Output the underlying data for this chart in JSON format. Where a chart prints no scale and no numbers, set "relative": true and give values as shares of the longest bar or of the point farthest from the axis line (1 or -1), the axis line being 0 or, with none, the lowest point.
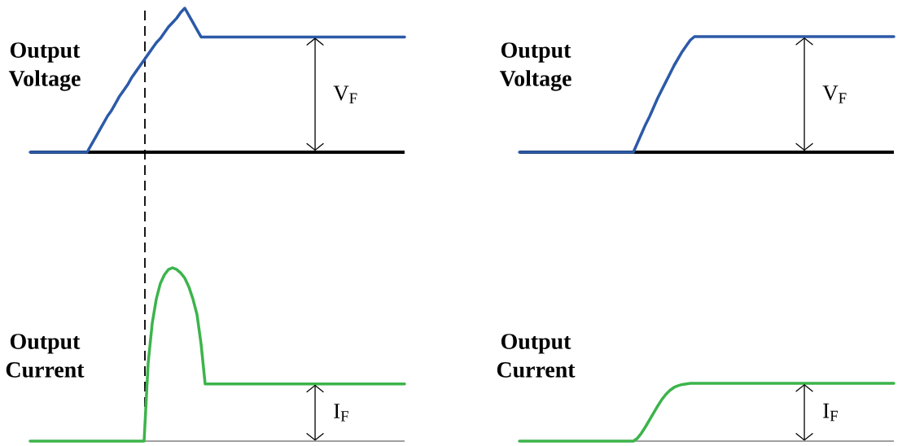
{
  "chart_data": [
    {
      "type": "line",
      "relative": true,
      "ylabel": "Output Voltage",
      "annotations": [
        {
          "text": "V$_{F}$",
          "y": 0.8
        }
      ],
      "categories": [
        null,
        null,
        null,
        null,
        null,
        null,
        null,
        null,
        null,
        null,
        null,
        null,
        null,
        null,
        null,
        null,
        null,
        null,
        null,
        null,
        null,
        null,
        null,
        null,
        null,
        null,
        null,
        null,
        null,
        null,
        null,
        null,
        null,
        null,
        null,
        null,
        null,
        null,
        null,
        null,
        null,
        null,
        null,
        null,
        null,
        null,
        null,
        null,
        null,
        null,
        null,
        null,
        null,
        null,
        null,
        null,
        null,
        null,
        null,
        null,
        null,
        null,
        null,
        null,
        null,
        null,
        null,
        null,
        null,
        null,
        null,
        null,
        null,
        null,
        null,
        null,
        null,
        null,
        null,
        null,
        null,
        null,
        null,
        null,
        null,
        null,
        null,
        null,
        null,
        null,
        null,
        null,
        null
      ],
      "series": [
        {
          "color": "#2c5aa8",
          "values": [
            0,
            0,
            0,
            0,
            0,
            0,
            0,
            0,
            0,
            0,
            0,
            0,
            0,
            0,
            0,
            0.05,
            0.1,
            0.15,
            0.2,
            0.25,
            0.29,
            0.34,
            0.39,
            0.43,
            0.47,
            0.52,
            0.56,
            0.6,
            0.64,
            0.68,
            0.72,
            0.76,
            0.79,
            0.83,
            0.87,
            0.9,
            0.93,
            0.97,
            1,
            0.95,
            0.9,
            0.85,
            0.8,
            0.8,
            0.8,
            0.8,
            0.8,
            0.8,
            0.8,
            0.8,
            0.8,
            0.8,
            0.8,
            0.8,
            0.8,
            0.8,
            0.8,
            0.8,
            0.8,
            0.8,
            0.8,
            0.8,
            0.8,
            0.8,
            0.8,
            0.8,
            0.8,
            0.8,
            0.8,
            0.8,
            0.8,
            0.8,
            0.8,
            0.8,
            0.8,
            0.8,
            0.8,
            0.8,
            0.8,
            0.8,
            0.8,
            0.8,
            0.8,
            0.8,
            0.8,
            0.8,
            0.8,
            0.8,
            0.8,
            0.8,
            0.8,
            0.8,
            0.8
          ]
        }
      ]
    },
    {
      "type": "line",
      "relative": true,
      "ylabel": "Output Voltage",
      "annotations": [
        {
          "text": "V$_{F}$",
          "y": 1
        }
      ],
      "categories": [
        null,
        null,
        null,
        null,
        null,
        null,
        null,
        null,
        null,
        null,
        null,
        null,
        null,
        null,
        null,
        null,
        null,
        null,
        null,
        null,
        null,
        null,
        null,
        null,
        null,
        null,
        null,
        null,
        null,
        null,
        null,
        null,
        null,
        null,
        null,
        null,
        null,
        null,
        null,
        null,
        null,
        null,
        null,
        null,
        null,
        null,
        null,
        null,
        null,
        null,
        null,
        null,
        null,
        null,
        null,
        null,
        null,
        null,
        null,
        null,
        null,
        null,
        null,
        null,
        null,
        null,
        null,
        null,
        null,
        null,
        null,
        null,
        null,
        null,
        null,
        null,
        null,
        null,
        null,
        null,
        null,
        null,
        null,
        null,
        null,
        null,
        null,
        null,
        null,
        null,
        null,
        null,
        null
      ],
      "series": [
        {
          "color": "#2c5aa8",
          "values": [
            0,
            0,
            0,
            0,
            0,
            0,
            0,
            0,
            0,
            0,
            0,
            0,
            0,
            0,
            0,
            0,
            0,
            0,
            0,
            0,
            0,
            0,
            0,
            0,
            0,
            0,
            0,
            0,
            0,
            0.08,
            0.16,
            0.24,
            0.31,
            0.39,
            0.47,
            0.54,
            0.61,
            0.68,
            0.75,
            0.81,
            0.87,
            0.92,
            0.97,
            1,
            1,
            1,
            1,
            1,
            1,
            1,
            1,
            1,
            1,
            1,
            1,
            1,
            1,
            1,
            1,
            1,
            1,
            1,
            1,
            1,
            1,
            1,
            1,
            1,
            1,
            1,
            1,
            1,
            1,
            1,
            1,
            1,
            1,
            1,
            1,
            1,
            1,
            1,
            1,
            1,
            1,
            1,
            1,
            1,
            1,
            1,
            1,
            1,
            1
          ]
        }
      ]
    },
    {
      "type": "line",
      "relative": true,
      "ylabel": "Output Current",
      "annotations": [
        {
          "text": "I$_{F}$",
          "y": 0.33
        }
      ],
      "categories": [
        null,
        null,
        null,
        null,
        null,
        null,
        null,
        null,
        null,
        null,
        null,
        null,
        null,
        null,
        null,
        null,
        null,
        null,
        null,
        null,
        null,
        null,
        null,
        null,
        null,
        null,
        null,
        null,
        null,
        null,
        null,
        null,
        null,
        null,
        null,
        null,
        null,
        null,
        null,
        null,
        null,
        null,
        null,
        null,
        null,
        null,
        null,
        null,
        null,
        null,
        null,
        null,
        null,
        null,
        null,
        null,
        null,
        null,
        null,
        null,
        null,
        null,
        null,
        null,
        null,
        null,
        null,
        null,
        null,
        null,
        null,
        null,
        null,
        null,
        null,
        null,
        null,
        null,
        null,
        null,
        null,
        null,
        null,
        null,
        null,
        null,
        null,
        null,
        null,
        null,
        null,
        null,
        null
      ],
      "series": [
        {
          "color": "#3cb44b",
          "values": [
            0,
            0,
            0,
            0,
            0,
            0,
            0,
            0,
            0,
            0,
            0,
            0,
            0,
            0,
            0,
            0,
            0,
            0,
            0,
            0,
            0,
            0,
            0,
            0,
            0,
            0,
            0,
            0,
            0,
            0.45,
            0.68,
            0.82,
            0.91,
            0.96,
            0.99,
            1,
            0.99,
            0.97,
            0.94,
            0.89,
            0.82,
            0.73,
            0.56,
            0.33,
            0.33,
            0.33,
            0.33,
            0.33,
            0.33,
            0.33,
            0.33,
            0.33,
            0.33,
            0.33,
            0.33,
            0.33,
            0.33,
            0.33,
            0.33,
            0.33,
            0.33,
            0.33,
            0.33,
            0.33,
            0.33,
            0.33,
            0.33,
            0.33,
            0.33,
            0.33,
            0.33,
            0.33,
            0.33,
            0.33,
            0.33,
            0.33,
            0.33,
            0.33,
            0.33,
            0.33,
            0.33,
            0.33,
            0.33,
            0.33,
            0.33,
            0.33,
            0.33,
            0.33,
            0.33,
            0.33,
            0.33,
            0.33,
            0.33
          ]
        }
      ]
    },
    {
      "type": "line",
      "relative": true,
      "ylabel": "Output Current",
      "annotations": [
        {
          "text": "I$_{F}$",
          "y": 1
        }
      ],
      "categories": [
        null,
        null,
        null,
        null,
        null,
        null,
        null,
        null,
        null,
        null,
        null,
        null,
        null,
        null,
        null,
        null,
        null,
        null,
        null,
        null,
        null,
        null,
        null,
        null,
        null,
        null,
        null,
        null,
        null,
        null,
        null,
        null,
        null,
        null,
        null,
        null,
        null,
        null,
        null,
        null,
        null,
        null,
        null,
        null,
        null,
        null,
        null,
        null,
        null,
        null,
        null,
        null,
        null,
        null,
        null,
        null,
        null,
        null,
        null,
        null,
        null,
        null,
        null,
        null,
        null,
        null,
        null,
        null,
        null,
        null,
        null,
        null,
        null,
        null,
        null,
        null,
        null,
        null,
        null,
        null,
        null,
        null,
        null,
        null,
        null,
        null,
        null,
        null,
        null,
        null,
        null,
        null,
        null
      ],
      "series": [
        {
          "color": "#3cb44b",
          "values": [
            0,
            0,
            0,
            0,
            0,
            0,
            0,
            0,
            0,
            0,
            0,
            0,
            0,
            0,
            0,
            0,
            0,
            0,
            0,
            0,
            0,
            0,
            0,
            0,
            0,
            0,
            0,
            0,
            0,
            0.05,
            0.14,
            0.25,
            0.37,
            0.49,
            0.61,
            0.72,
            0.81,
            0.88,
            0.93,
            0.96,
            0.98,
            0.99,
            1,
            1,
            1,
            1,
            1,
            1,
            1,
            1,
            1,
            1,
            1,
            1,
            1,
            1,
            1,
            1,
            1,
            1,
            1,
            1,
            1,
            1,
            1,
            1,
            1,
            1,
            1,
            1,
            1,
            1,
            1,
            1,
            1,
            1,
            1,
            1,
            1,
            1,
            1,
            1,
            1,
            1,
            1,
            1,
            1,
            1,
            1,
            1,
            1,
            1,
            1
          ]
        }
      ]
    }
  ]
}
